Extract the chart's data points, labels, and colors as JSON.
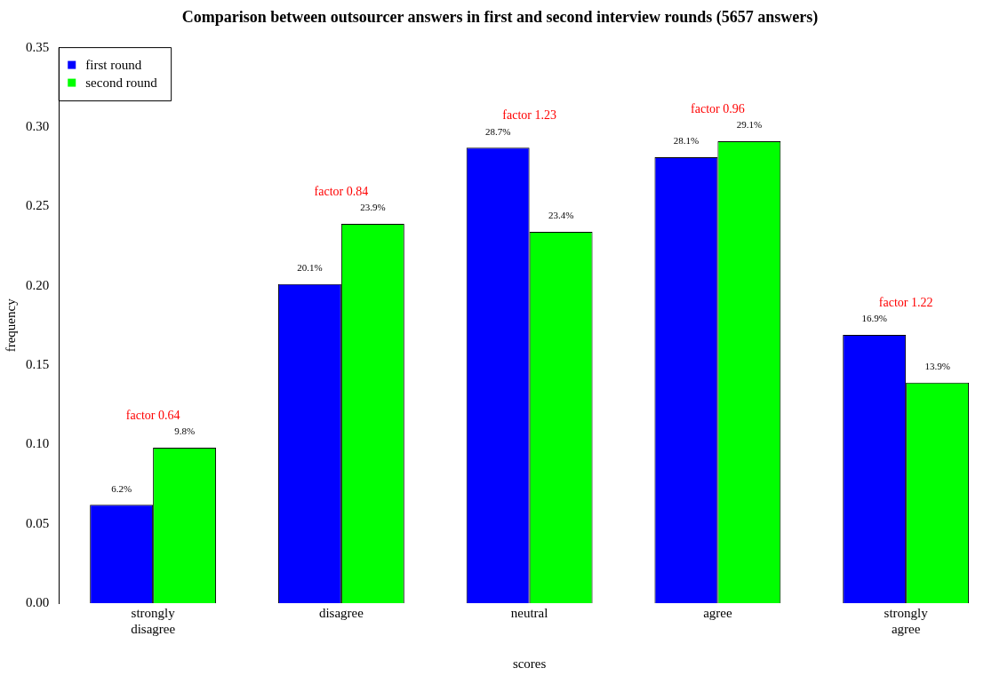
{
  "chart_data": {
    "type": "bar",
    "title": "Comparison between outsourcer answers in first and second interview rounds (5657 answers)",
    "xlabel": "scores",
    "ylabel": "frequency",
    "categories": [
      "strongly disagree",
      "disagree",
      "neutral",
      "agree",
      "strongly agree"
    ],
    "series": [
      {
        "name": "first round",
        "color": "#0000ff",
        "values": [
          0.062,
          0.201,
          0.287,
          0.281,
          0.169
        ],
        "value_labels": [
          "6.2%",
          "20.1%",
          "28.7%",
          "28.1%",
          "16.9%"
        ]
      },
      {
        "name": "second round",
        "color": "#00ff00",
        "values": [
          0.098,
          0.239,
          0.234,
          0.291,
          0.139
        ],
        "value_labels": [
          "9.8%",
          "23.9%",
          "23.4%",
          "29.1%",
          "13.9%"
        ]
      }
    ],
    "annotations": [
      "factor 0.64",
      "factor 0.84",
      "factor 1.23",
      "factor 0.96",
      "factor 1.22"
    ],
    "ylim": [
      0,
      0.35
    ],
    "yticks": [
      {
        "value": 0,
        "label": "0.00"
      },
      {
        "value": 0.05,
        "label": "0.05"
      },
      {
        "value": 0.1,
        "label": "0.10"
      },
      {
        "value": 0.15,
        "label": "0.15"
      },
      {
        "value": 0.2,
        "label": "0.20"
      },
      {
        "value": 0.25,
        "label": "0.25"
      },
      {
        "value": 0.3,
        "label": "0.30"
      },
      {
        "value": 0.35,
        "label": "0.35"
      }
    ],
    "legend": "top left",
    "grid": false
  }
}
